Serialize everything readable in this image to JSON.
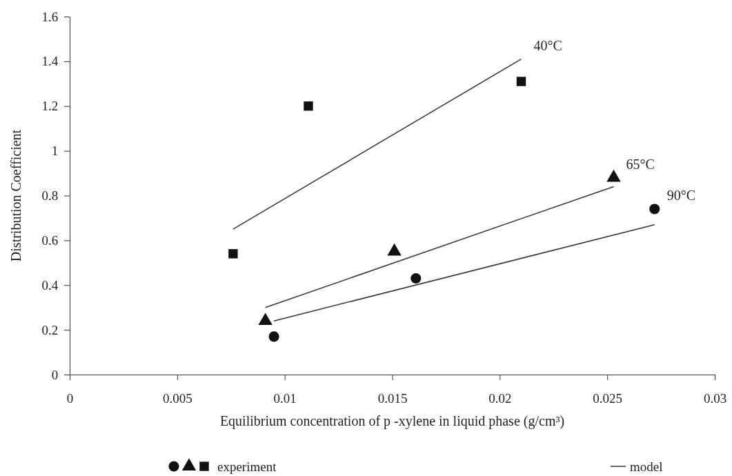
{
  "chart_data": {
    "type": "scatter",
    "xlabel": "Equilibrium concentration of p -xylene in liquid phase (g/cm³)",
    "ylabel": "Distribution Coefficient",
    "xlim": [
      0,
      0.03
    ],
    "xticks": [
      0,
      0.005,
      0.01,
      0.015,
      0.02,
      0.025,
      0.03
    ],
    "ylim": [
      0,
      1.6
    ],
    "yticks": [
      0,
      0.2,
      0.4,
      0.6,
      0.8,
      1,
      1.2,
      1.4,
      1.6
    ],
    "grid": false,
    "legend": "bottom",
    "series": [
      {
        "name": "experiment",
        "marker": "circle",
        "color": "#111111",
        "x": [
          0.0095,
          0.0161,
          0.0272
        ],
        "values": [
          0.17,
          0.43,
          0.74
        ]
      },
      {
        "marker": "triangle",
        "color": "#111111",
        "x": [
          0.0091,
          0.0151,
          0.0253
        ],
        "values": [
          0.24,
          0.55,
          0.88
        ]
      },
      {
        "marker": "square",
        "color": "#111111",
        "x": [
          0.0076,
          0.0111,
          0.021
        ],
        "values": [
          0.54,
          1.2,
          1.31
        ]
      },
      {
        "name": "model",
        "type": "line",
        "marker": "none",
        "color": "#333333",
        "x": [
          0.0076,
          0.021
        ],
        "values": [
          0.65,
          1.41
        ]
      },
      {
        "type": "line",
        "marker": "none",
        "color": "#333333",
        "x": [
          0.0091,
          0.0253
        ],
        "values": [
          0.3,
          0.84
        ]
      },
      {
        "type": "line",
        "marker": "none",
        "color": "#333333",
        "x": [
          0.0095,
          0.0272
        ],
        "values": [
          0.24,
          0.67
        ]
      }
    ],
    "annotations": [
      {
        "text": "40°C",
        "x": 0.021,
        "y": 1.41
      },
      {
        "text": "65°C",
        "x": 0.0253,
        "y": 0.88
      },
      {
        "text": "90°C",
        "x": 0.0272,
        "y": 0.74
      }
    ]
  }
}
